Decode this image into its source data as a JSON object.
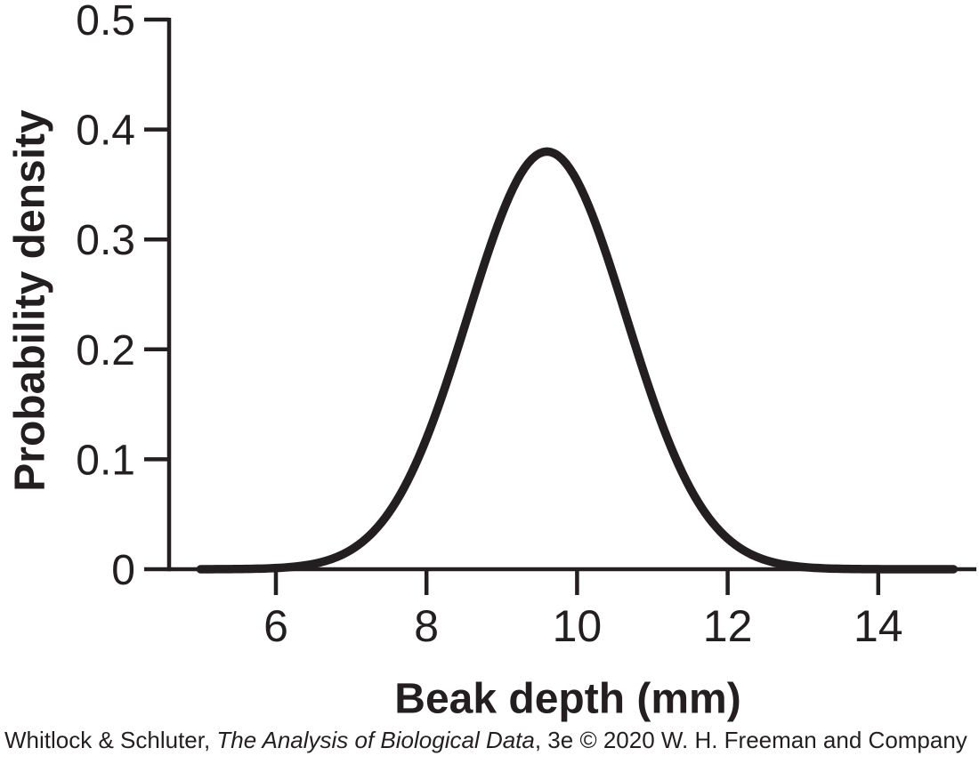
{
  "chart_data": {
    "type": "line",
    "title": "",
    "xlabel": "Beak depth (mm)",
    "ylabel": "Probability density",
    "x_ticks": [
      6,
      8,
      10,
      12,
      14
    ],
    "x_tick_labels": [
      "6",
      "8",
      "10",
      "12",
      "14"
    ],
    "y_ticks": [
      0,
      0.1,
      0.2,
      0.3,
      0.4,
      0.5
    ],
    "y_tick_labels": [
      "0",
      "0.1",
      "0.2",
      "0.3",
      "0.4",
      "0.5"
    ],
    "xlim": [
      4.6,
      15.3
    ],
    "ylim": [
      0,
      0.5
    ],
    "grid": false,
    "legend": "none",
    "line_color": "#231f20",
    "curve": {
      "kind": "normal-pdf",
      "mean": 9.6,
      "sd": 1.05,
      "peak_density": 0.38,
      "x_range": [
        5,
        15
      ]
    },
    "series": [
      {
        "name": "Probability density of beak depth",
        "x": [
          5,
          5.5,
          6,
          6.5,
          7,
          7.5,
          8,
          8.5,
          9,
          9.5,
          9.6,
          10,
          10.5,
          11,
          11.5,
          12,
          12.5,
          13,
          13.5,
          14,
          14.5,
          15
        ],
        "y": [
          3e-05,
          0.00019,
          0.00106,
          0.00487,
          0.0177,
          0.0514,
          0.119,
          0.2195,
          0.3227,
          0.3782,
          0.38,
          0.3534,
          0.2632,
          0.1562,
          0.0739,
          0.0279,
          0.0084,
          0.002,
          0.00038,
          6e-05,
          1e-05,
          0.0
        ]
      }
    ]
  },
  "credit": {
    "prefix": "Whitlock & Schluter, ",
    "italic": "The Analysis of Biological Data",
    "suffix": ", 3e © 2020 W. H. Freeman and Company"
  },
  "colors": {
    "ink": "#231f20",
    "background": "#ffffff"
  }
}
